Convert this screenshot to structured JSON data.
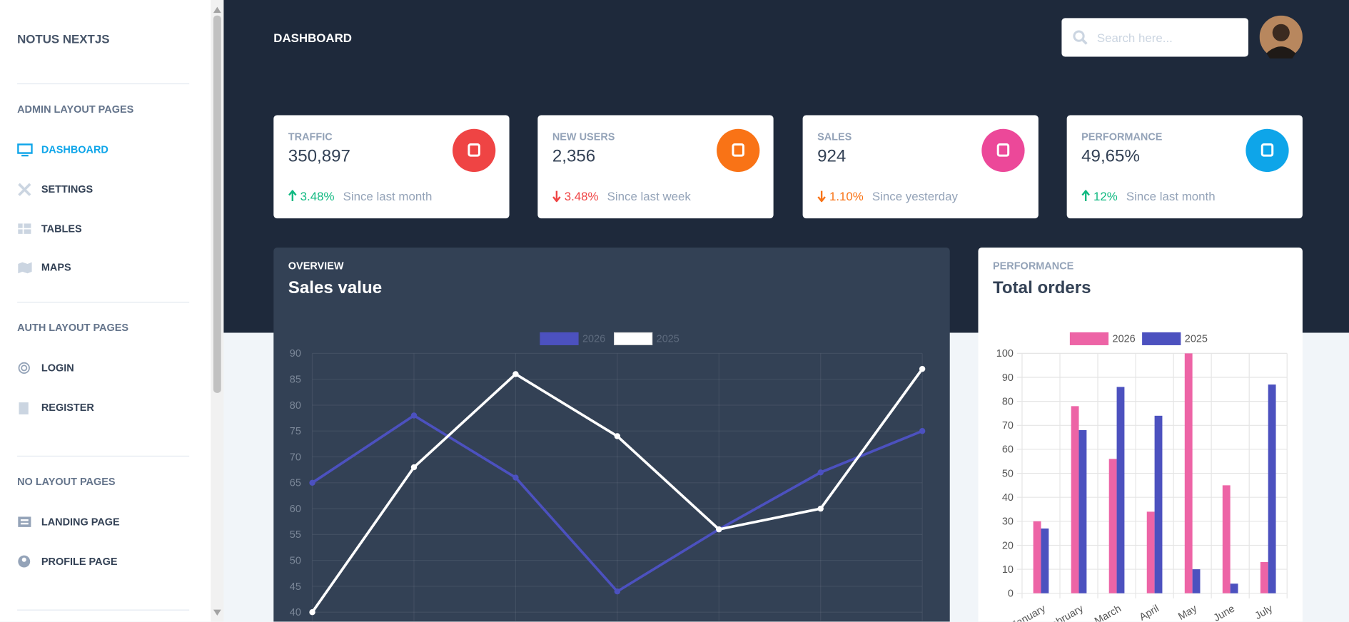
{
  "sidebar": {
    "brand": "NOTUS NEXTJS",
    "sections": [
      {
        "heading": "ADMIN LAYOUT PAGES",
        "items": [
          "DASHBOARD",
          "SETTINGS",
          "TABLES",
          "MAPS"
        ]
      },
      {
        "heading": "AUTH LAYOUT PAGES",
        "items": [
          "LOGIN",
          "REGISTER"
        ]
      },
      {
        "heading": "NO LAYOUT PAGES",
        "items": [
          "LANDING PAGE",
          "PROFILE PAGE"
        ]
      }
    ]
  },
  "header": {
    "title": "DASHBOARD",
    "search_placeholder": "Search here..."
  },
  "stats": [
    {
      "label": "TRAFFIC",
      "value": "350,897",
      "change": "3.48%",
      "direction": "up",
      "change_color": "#10b981",
      "note": "Since last month",
      "color": "#ef4444"
    },
    {
      "label": "NEW USERS",
      "value": "2,356",
      "change": "3.48%",
      "direction": "down",
      "change_color": "#ef4444",
      "note": "Since last week",
      "color": "#f97316"
    },
    {
      "label": "SALES",
      "value": "924",
      "change": "1.10%",
      "direction": "down",
      "change_color": "#f97316",
      "note": "Since yesterday",
      "color": "#ec4899"
    },
    {
      "label": "PERFORMANCE",
      "value": "49,65%",
      "change": "12%",
      "direction": "up",
      "change_color": "#10b981",
      "note": "Since last month",
      "color": "#0ea5e9"
    }
  ],
  "chart_data": [
    {
      "type": "line",
      "subtitle": "OVERVIEW",
      "title": "Sales value",
      "series": [
        {
          "name": "2026",
          "color": "#4c51bf",
          "values": [
            65,
            78,
            66,
            44,
            56,
            67,
            75
          ]
        },
        {
          "name": "2025",
          "color": "#ffffff",
          "values": [
            40,
            68,
            86,
            74,
            56,
            60,
            87
          ]
        }
      ],
      "ylim": [
        40,
        90
      ],
      "yticks": [
        40,
        45,
        50,
        55,
        60,
        65,
        70,
        75,
        80,
        85,
        90
      ],
      "grid": true,
      "legend": "top"
    },
    {
      "type": "bar",
      "subtitle": "PERFORMANCE",
      "title": "Total orders",
      "categories": [
        "January",
        "February",
        "March",
        "April",
        "May",
        "June",
        "July"
      ],
      "series": [
        {
          "name": "2026",
          "color": "#ed64a6",
          "values": [
            30,
            78,
            56,
            34,
            100,
            45,
            13
          ]
        },
        {
          "name": "2025",
          "color": "#4c51bf",
          "values": [
            27,
            68,
            86,
            74,
            10,
            4,
            87
          ]
        }
      ],
      "ylim": [
        0,
        100
      ],
      "yticks": [
        0,
        10,
        20,
        30,
        40,
        50,
        60,
        70,
        80,
        90,
        100
      ],
      "grid": true,
      "legend": "top"
    }
  ]
}
